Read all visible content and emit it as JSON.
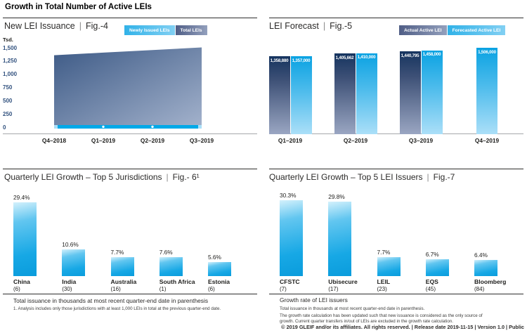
{
  "page": {
    "title": "Growth in Total Number of Active LEIs",
    "separator": "|",
    "copyright": "© 2019 GLEIF and/or its affiliates. All rights reserved. | Release date 2019-11-15 | Version 1.0 | Public"
  },
  "colors": {
    "accent_cyan": "#00a9e8",
    "actual_navy_top": "#15345f",
    "actual_navy_bottom": "#9aa6c2",
    "forecast_cyan_top": "#0aa2e2",
    "forecast_cyan_bottom": "#abdff8",
    "axis_tick_blue": "#31517e",
    "text_dark": "#1d1d1b"
  },
  "chart_data": [
    {
      "id": "fig4",
      "type": "area",
      "title": "New LEI Issuance",
      "fig_label": "Fig.-4",
      "unit_label": "Tsd.",
      "categories": [
        "Q4–2018",
        "Q1–2019",
        "Q2–2019",
        "Q3–2019"
      ],
      "series": [
        {
          "name": "Total LEIs",
          "values": [
            1359,
            1408,
            1457,
            1506
          ]
        },
        {
          "name": "Newly Issued LEIs",
          "values": [
            40,
            40,
            40,
            40
          ]
        }
      ],
      "ylim": [
        0,
        1500
      ],
      "y_ticks": [
        0,
        250,
        500,
        750,
        1000,
        1250,
        1500
      ],
      "y_tick_labels": [
        "0",
        "250",
        "500",
        "750",
        "1,000",
        "1,250",
        "1,500"
      ],
      "grid": false,
      "legend_position": "top-right"
    },
    {
      "id": "fig5",
      "type": "bar",
      "title": "LEI Forecast",
      "fig_label": "Fig.-5",
      "categories": [
        "Q1–2019",
        "Q2–2019",
        "Q3–2019",
        "Q4–2019"
      ],
      "series": [
        {
          "name": "Actual Active LEI",
          "values": [
            1358880,
            1405662,
            1440795,
            null
          ],
          "labels": [
            "1,358,880",
            "1,405,662",
            "1,440,795",
            null
          ]
        },
        {
          "name": "Forecasted Active LEI",
          "values": [
            1357000,
            1410000,
            1458000,
            1506000
          ],
          "labels": [
            "1,357,000",
            "1,410,000",
            "1,458,000",
            "1,506,000"
          ]
        }
      ],
      "grid": false,
      "legend_position": "top-right"
    },
    {
      "id": "fig6",
      "type": "bar",
      "title": "Quarterly LEI Growth – Top 5 Jurisdictions",
      "fig_label": "Fig.- 6¹",
      "categories": [
        "China",
        "India",
        "Australia",
        "South Africa",
        "Estonia"
      ],
      "values": [
        29.4,
        10.6,
        7.7,
        7.6,
        5.6
      ],
      "value_labels": [
        "29.4%",
        "10.6%",
        "7.7%",
        "7.6%",
        "5.6%"
      ],
      "category_sublabels": [
        "(6)",
        "(30)",
        "(16)",
        "(1)",
        "(6)"
      ],
      "note": "Total issuance in thousands at most recent quarter-end date in parenthesis",
      "footnote": "1. Analysis includes only those jurisdictions with at least 1,000 LEIs in total at the previous quarter-end date."
    },
    {
      "id": "fig7",
      "type": "bar",
      "title": "Quarterly LEI Growth – Top 5 LEI Issuers",
      "fig_label": "Fig.-7",
      "categories": [
        "CFSTC",
        "Ubisecure",
        "LEIL",
        "EQS",
        "Bloomberg"
      ],
      "values": [
        30.3,
        29.8,
        7.7,
        6.7,
        6.4
      ],
      "value_labels": [
        "30.3%",
        "29.8%",
        "7.7%",
        "6.7%",
        "6.4%"
      ],
      "category_sublabels": [
        "(7)",
        "(17)",
        "(23)",
        "(45)",
        "(84)"
      ],
      "note_heading": "Growth rate of LEI issuers",
      "note1": "Total issuance in thousands at most recent quarter-end date in parenthesis.",
      "note2": "The growth rate calculation has been updated such that new issuance is considered as the only source of growth. Current quarter transfers in/out of LEIs are excluded in the growth rate calculation."
    }
  ]
}
